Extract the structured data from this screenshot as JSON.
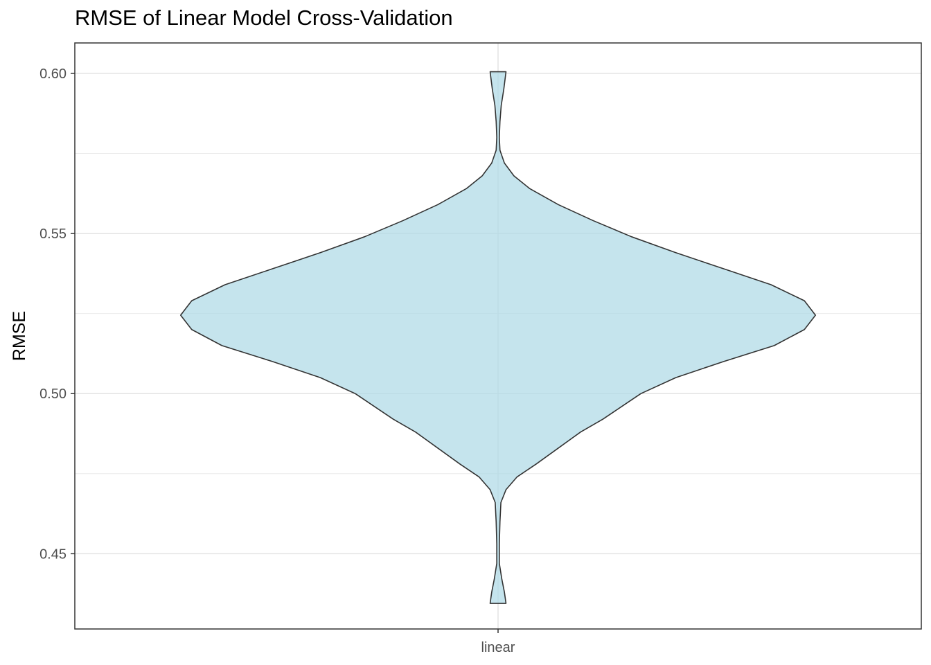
{
  "chart_data": {
    "type": "violin",
    "title": "RMSE of Linear Model Cross-Validation",
    "xlabel": "",
    "ylabel": "RMSE",
    "categories": [
      "linear"
    ],
    "ylim": [
      0.4265,
      0.6095
    ],
    "yticks": [
      0.45,
      0.5,
      0.55,
      0.6
    ],
    "ytick_labels": [
      "0.45",
      "0.50",
      "0.55",
      "0.60"
    ],
    "grid": true,
    "fill_color": "#add8e6",
    "fill_opacity": 0.7,
    "outline_color": "#333333",
    "series": [
      {
        "category": "linear",
        "min": 0.4345,
        "max": 0.6005,
        "density_profile": [
          [
            0.4345,
            0.025
          ],
          [
            0.438,
            0.02
          ],
          [
            0.442,
            0.012
          ],
          [
            0.447,
            0.004
          ],
          [
            0.453,
            0.004
          ],
          [
            0.46,
            0.006
          ],
          [
            0.466,
            0.009
          ],
          [
            0.47,
            0.025
          ],
          [
            0.474,
            0.06
          ],
          [
            0.478,
            0.12
          ],
          [
            0.483,
            0.19
          ],
          [
            0.488,
            0.26
          ],
          [
            0.492,
            0.33
          ],
          [
            0.496,
            0.39
          ],
          [
            0.5,
            0.45
          ],
          [
            0.505,
            0.56
          ],
          [
            0.51,
            0.71
          ],
          [
            0.515,
            0.87
          ],
          [
            0.52,
            0.965
          ],
          [
            0.5245,
            1.0
          ],
          [
            0.529,
            0.965
          ],
          [
            0.534,
            0.86
          ],
          [
            0.539,
            0.71
          ],
          [
            0.544,
            0.56
          ],
          [
            0.549,
            0.42
          ],
          [
            0.554,
            0.3
          ],
          [
            0.559,
            0.19
          ],
          [
            0.564,
            0.1
          ],
          [
            0.568,
            0.05
          ],
          [
            0.572,
            0.02
          ],
          [
            0.576,
            0.006
          ],
          [
            0.58,
            0.004
          ],
          [
            0.585,
            0.006
          ],
          [
            0.59,
            0.01
          ],
          [
            0.595,
            0.018
          ],
          [
            0.6005,
            0.025
          ]
        ]
      }
    ]
  }
}
